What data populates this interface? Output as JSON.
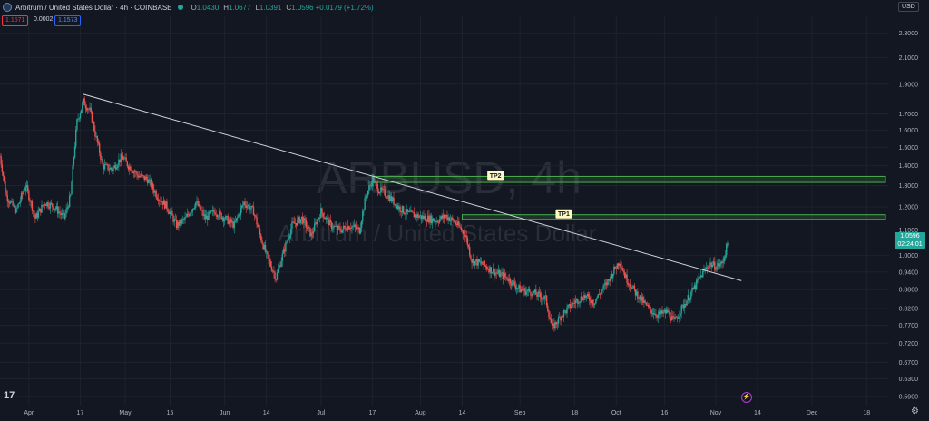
{
  "header": {
    "title": "Arbitrum / United States Dollar · 4h · COINBASE",
    "ohlc": [
      {
        "k": "O",
        "v": "1.0430"
      },
      {
        "k": "H",
        "v": "1.0677"
      },
      {
        "k": "L",
        "v": "1.0391"
      },
      {
        "k": "C",
        "v": "1.0596"
      }
    ],
    "change": "+0.0179 (+1.72%)",
    "sell_price": "1.1571",
    "spread": "0.0002",
    "buy_price": "1.1573",
    "currency": "USD"
  },
  "watermark": {
    "line1": "ARBUSD, 4h",
    "line2": "Arbitrum / United States Dollar"
  },
  "price_tag": {
    "price": "1.0596",
    "countdown": "02:24:01"
  },
  "colors": {
    "up": "#26a69a",
    "down": "#ef5350",
    "zone": "#4caf50",
    "trendline": "#d1d4dc",
    "background": "#131722"
  },
  "icons": {
    "logo": "tradingview-logo-icon",
    "settings": "gear-icon",
    "alert": "flash-icon"
  },
  "logo_text": "17",
  "chart_data": {
    "type": "candlestick",
    "y_scale": "log",
    "ylim": [
      0.57,
      2.45
    ],
    "y_ticks": [
      "2.3000",
      "2.1000",
      "1.9000",
      "1.7000",
      "1.6000",
      "1.5000",
      "1.4000",
      "1.3000",
      "1.2000",
      "1.1000",
      "1.0000",
      "0.9400",
      "0.8800",
      "0.8200",
      "0.7700",
      "0.7200",
      "0.6700",
      "0.6300",
      "0.5900"
    ],
    "x_ticks": [
      "Apr",
      "17",
      "May",
      "15",
      "Jun",
      "14",
      "Jul",
      "17",
      "Aug",
      "14",
      "Sep",
      "18",
      "Oct",
      "16",
      "Nov",
      "14",
      "Dec",
      "18"
    ],
    "x_range": [
      "2023-03-23",
      "2023-12-25"
    ],
    "x_tick_dates": [
      "2023-04-01",
      "2023-04-17",
      "2023-05-01",
      "2023-05-15",
      "2023-06-01",
      "2023-06-14",
      "2023-07-01",
      "2023-07-17",
      "2023-08-01",
      "2023-08-14",
      "2023-09-01",
      "2023-09-18",
      "2023-10-01",
      "2023-10-16",
      "2023-11-01",
      "2023-11-14",
      "2023-12-01",
      "2023-12-18"
    ],
    "path": [
      [
        "2023-03-23",
        1.45
      ],
      [
        "2023-03-25",
        1.25
      ],
      [
        "2023-03-28",
        1.18
      ],
      [
        "2023-03-31",
        1.3
      ],
      [
        "2023-04-03",
        1.15
      ],
      [
        "2023-04-06",
        1.22
      ],
      [
        "2023-04-09",
        1.2
      ],
      [
        "2023-04-12",
        1.15
      ],
      [
        "2023-04-14",
        1.25
      ],
      [
        "2023-04-16",
        1.65
      ],
      [
        "2023-04-18",
        1.78
      ],
      [
        "2023-04-20",
        1.72
      ],
      [
        "2023-04-22",
        1.55
      ],
      [
        "2023-04-24",
        1.4
      ],
      [
        "2023-04-27",
        1.38
      ],
      [
        "2023-04-30",
        1.45
      ],
      [
        "2023-05-02",
        1.4
      ],
      [
        "2023-05-05",
        1.35
      ],
      [
        "2023-05-08",
        1.33
      ],
      [
        "2023-05-11",
        1.25
      ],
      [
        "2023-05-14",
        1.2
      ],
      [
        "2023-05-17",
        1.12
      ],
      [
        "2023-05-20",
        1.15
      ],
      [
        "2023-05-23",
        1.22
      ],
      [
        "2023-05-26",
        1.15
      ],
      [
        "2023-05-29",
        1.18
      ],
      [
        "2023-06-01",
        1.15
      ],
      [
        "2023-06-04",
        1.12
      ],
      [
        "2023-06-07",
        1.22
      ],
      [
        "2023-06-10",
        1.18
      ],
      [
        "2023-06-12",
        1.08
      ],
      [
        "2023-06-14",
        1.0
      ],
      [
        "2023-06-17",
        0.92
      ],
      [
        "2023-06-19",
        1.0
      ],
      [
        "2023-06-22",
        1.12
      ],
      [
        "2023-06-25",
        1.15
      ],
      [
        "2023-06-28",
        1.08
      ],
      [
        "2023-07-01",
        1.18
      ],
      [
        "2023-07-04",
        1.12
      ],
      [
        "2023-07-07",
        1.1
      ],
      [
        "2023-07-10",
        1.12
      ],
      [
        "2023-07-13",
        1.1
      ],
      [
        "2023-07-15",
        1.25
      ],
      [
        "2023-07-17",
        1.33
      ],
      [
        "2023-07-19",
        1.28
      ],
      [
        "2023-07-22",
        1.25
      ],
      [
        "2023-07-25",
        1.2
      ],
      [
        "2023-07-28",
        1.17
      ],
      [
        "2023-07-31",
        1.16
      ],
      [
        "2023-08-03",
        1.15
      ],
      [
        "2023-08-06",
        1.14
      ],
      [
        "2023-08-09",
        1.16
      ],
      [
        "2023-08-12",
        1.13
      ],
      [
        "2023-08-15",
        1.08
      ],
      [
        "2023-08-17",
        0.98
      ],
      [
        "2023-08-20",
        0.97
      ],
      [
        "2023-08-24",
        0.94
      ],
      [
        "2023-08-28",
        0.92
      ],
      [
        "2023-09-01",
        0.88
      ],
      [
        "2023-09-05",
        0.87
      ],
      [
        "2023-09-09",
        0.85
      ],
      [
        "2023-09-11",
        0.76
      ],
      [
        "2023-09-14",
        0.8
      ],
      [
        "2023-09-18",
        0.84
      ],
      [
        "2023-09-21",
        0.86
      ],
      [
        "2023-09-24",
        0.84
      ],
      [
        "2023-09-28",
        0.9
      ],
      [
        "2023-10-02",
        0.98
      ],
      [
        "2023-10-04",
        0.92
      ],
      [
        "2023-10-07",
        0.87
      ],
      [
        "2023-10-11",
        0.82
      ],
      [
        "2023-10-14",
        0.8
      ],
      [
        "2023-10-17",
        0.81
      ],
      [
        "2023-10-19",
        0.78
      ],
      [
        "2023-10-22",
        0.83
      ],
      [
        "2023-10-25",
        0.88
      ],
      [
        "2023-10-27",
        0.92
      ],
      [
        "2023-10-30",
        0.97
      ],
      [
        "2023-11-01",
        0.96
      ],
      [
        "2023-11-03",
        0.97
      ],
      [
        "2023-11-05",
        1.06
      ]
    ],
    "trendline": [
      [
        "2023-04-18",
        1.83
      ],
      [
        "2023-11-09",
        0.91
      ]
    ],
    "targets": [
      {
        "label": "TP1",
        "start": "2023-08-14",
        "low": 1.145,
        "high": 1.165
      },
      {
        "label": "TP2",
        "start": "2023-07-17",
        "low": 1.315,
        "high": 1.345
      }
    ],
    "last_price": 1.0596
  }
}
